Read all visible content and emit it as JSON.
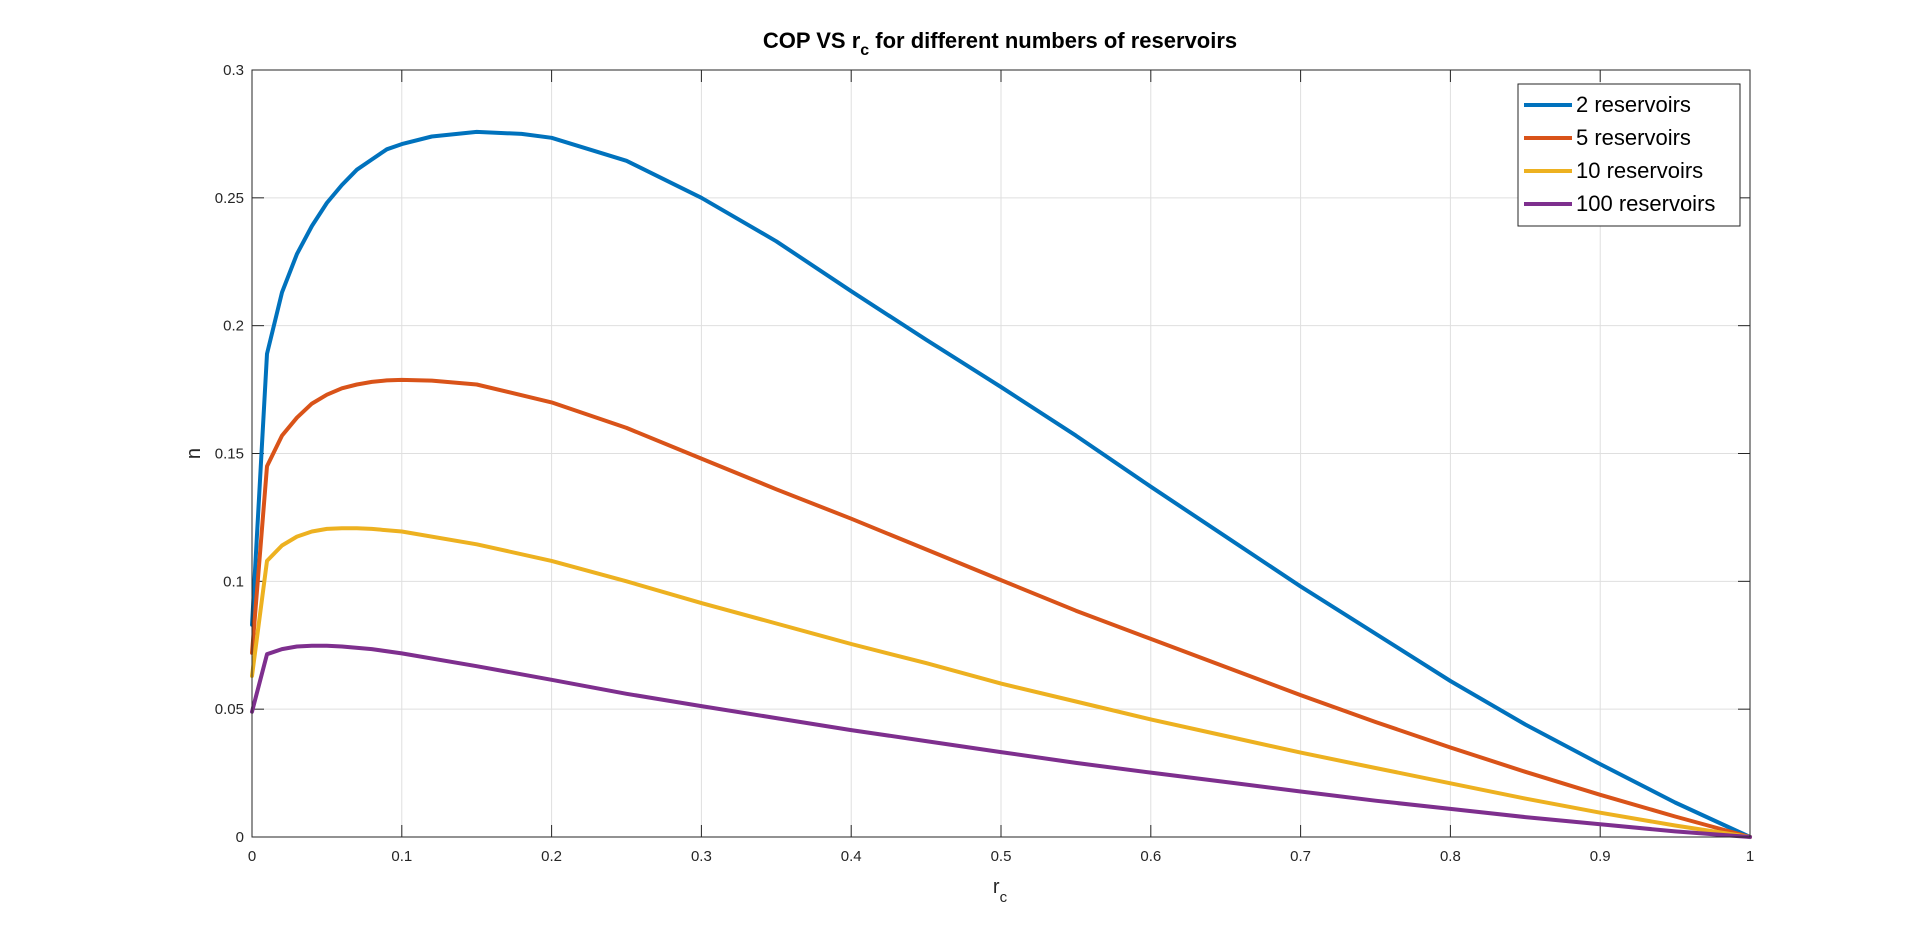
{
  "chart_data": {
    "type": "line",
    "title": "COP VS r",
    "title_sub": "c",
    "title_suffix": " for different numbers of reservoirs",
    "xlabel": "r",
    "xlabel_sub": "c",
    "ylabel": "n",
    "xlim": [
      0,
      1
    ],
    "ylim": [
      0,
      0.3
    ],
    "xticks": [
      0,
      0.1,
      0.2,
      0.3,
      0.4,
      0.5,
      0.6,
      0.7,
      0.8,
      0.9,
      1
    ],
    "xtick_labels": [
      "0",
      "0.1",
      "0.2",
      "0.3",
      "0.4",
      "0.5",
      "0.6",
      "0.7",
      "0.8",
      "0.9",
      "1"
    ],
    "yticks": [
      0,
      0.05,
      0.1,
      0.15,
      0.2,
      0.25,
      0.3
    ],
    "ytick_labels": [
      "0",
      "0.05",
      "0.1",
      "0.15",
      "0.2",
      "0.25",
      "0.3"
    ],
    "grid": true,
    "legend_position": "top-right",
    "series": [
      {
        "name": "2 reservoirs",
        "color": "#0072BD",
        "x": [
          0,
          0.01,
          0.02,
          0.03,
          0.04,
          0.05,
          0.06,
          0.07,
          0.08,
          0.09,
          0.1,
          0.12,
          0.15,
          0.18,
          0.2,
          0.25,
          0.3,
          0.35,
          0.4,
          0.45,
          0.5,
          0.55,
          0.6,
          0.65,
          0.7,
          0.75,
          0.8,
          0.85,
          0.9,
          0.95,
          1
        ],
        "y": [
          0.083,
          0.189,
          0.213,
          0.228,
          0.239,
          0.248,
          0.255,
          0.261,
          0.265,
          0.269,
          0.271,
          0.274,
          0.2758,
          0.275,
          0.2735,
          0.2645,
          0.25,
          0.233,
          0.2135,
          0.1945,
          0.176,
          0.157,
          0.137,
          0.1175,
          0.098,
          0.0795,
          0.061,
          0.044,
          0.0285,
          0.0135,
          0
        ]
      },
      {
        "name": "5 reservoirs",
        "color": "#D95319",
        "x": [
          0,
          0.01,
          0.02,
          0.03,
          0.04,
          0.05,
          0.06,
          0.07,
          0.08,
          0.09,
          0.1,
          0.12,
          0.15,
          0.2,
          0.25,
          0.3,
          0.35,
          0.4,
          0.45,
          0.5,
          0.55,
          0.6,
          0.65,
          0.7,
          0.75,
          0.8,
          0.85,
          0.9,
          0.95,
          1
        ],
        "y": [
          0.072,
          0.145,
          0.157,
          0.164,
          0.1695,
          0.173,
          0.1755,
          0.177,
          0.178,
          0.1786,
          0.1788,
          0.1785,
          0.177,
          0.17,
          0.16,
          0.148,
          0.136,
          0.1245,
          0.1125,
          0.1005,
          0.0885,
          0.0775,
          0.0665,
          0.0555,
          0.045,
          0.035,
          0.0255,
          0.0165,
          0.008,
          0
        ]
      },
      {
        "name": "10 reservoirs",
        "color": "#EDB120",
        "x": [
          0,
          0.01,
          0.02,
          0.03,
          0.04,
          0.05,
          0.06,
          0.07,
          0.08,
          0.1,
          0.15,
          0.2,
          0.25,
          0.3,
          0.35,
          0.4,
          0.45,
          0.5,
          0.55,
          0.6,
          0.65,
          0.7,
          0.75,
          0.8,
          0.85,
          0.9,
          0.95,
          1
        ],
        "y": [
          0.063,
          0.108,
          0.114,
          0.1175,
          0.1195,
          0.1205,
          0.1208,
          0.1208,
          0.1205,
          0.1195,
          0.1145,
          0.108,
          0.1,
          0.0915,
          0.0835,
          0.0755,
          0.068,
          0.06,
          0.053,
          0.046,
          0.0395,
          0.033,
          0.027,
          0.021,
          0.015,
          0.0095,
          0.0045,
          0
        ]
      },
      {
        "name": "100 reservoirs",
        "color": "#7E2F8E",
        "x": [
          0,
          0.01,
          0.02,
          0.03,
          0.04,
          0.05,
          0.06,
          0.08,
          0.1,
          0.15,
          0.2,
          0.25,
          0.3,
          0.35,
          0.4,
          0.45,
          0.5,
          0.55,
          0.6,
          0.65,
          0.7,
          0.75,
          0.8,
          0.85,
          0.9,
          0.95,
          1
        ],
        "y": [
          0.049,
          0.0715,
          0.0735,
          0.0745,
          0.0748,
          0.0748,
          0.0745,
          0.0735,
          0.0718,
          0.0668,
          0.0615,
          0.056,
          0.0512,
          0.0465,
          0.0418,
          0.0375,
          0.0332,
          0.029,
          0.0252,
          0.0215,
          0.0178,
          0.0142,
          0.011,
          0.0078,
          0.005,
          0.0022,
          0
        ]
      }
    ]
  }
}
